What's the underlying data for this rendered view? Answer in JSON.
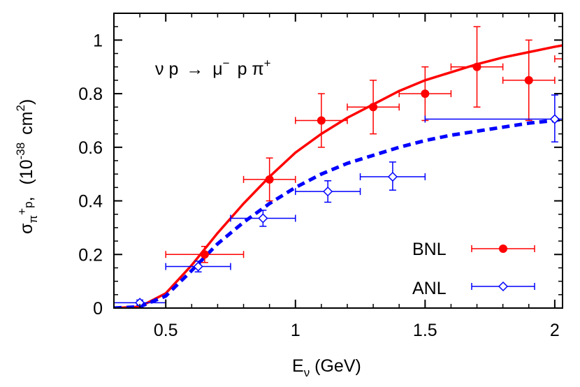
{
  "chart_data": {
    "type": "line",
    "title": "",
    "annotation": {
      "left": "ν p",
      "arrow": "→",
      "mu": "μ",
      "mu_sup": "−",
      "p": "p",
      "pi": "π",
      "pi_sup": "+"
    },
    "xlabel": {
      "main": "E",
      "sub": "ν",
      "unit": "(GeV)"
    },
    "ylabel": {
      "sigma": "σ",
      "sub": "π",
      "sub_sup": "+",
      "sub2": "p",
      "comma": ",",
      "unit_open": "(10",
      "exp": "-38",
      "unit_mid": "cm",
      "unit_exp": "2",
      "unit_close": ")"
    },
    "xlim": [
      0.3,
      2.03
    ],
    "ylim": [
      0,
      1.1
    ],
    "xticks": [
      0.5,
      1,
      1.5,
      2
    ],
    "xtick_labels": [
      "0.5",
      "1",
      "1.5",
      "2"
    ],
    "yticks": [
      0,
      0.2,
      0.4,
      0.6,
      0.8,
      1
    ],
    "ytick_labels": [
      "0",
      "0.2",
      "0.4",
      "0.6",
      "0.8",
      "1"
    ],
    "grid": false,
    "legend_position": "bottom-right",
    "series": [
      {
        "name": "BNL",
        "kind": "points",
        "color": "#ff0000",
        "marker": "filled-circle",
        "points": [
          {
            "x": 0.65,
            "y": 0.2,
            "xlo": 0.5,
            "xhi": 0.8,
            "ylo": 0.17,
            "yhi": 0.23
          },
          {
            "x": 0.9,
            "y": 0.48,
            "xlo": 0.8,
            "xhi": 1.0,
            "ylo": 0.4,
            "yhi": 0.56
          },
          {
            "x": 1.1,
            "y": 0.7,
            "xlo": 1.0,
            "xhi": 1.2,
            "ylo": 0.6,
            "yhi": 0.8
          },
          {
            "x": 1.3,
            "y": 0.75,
            "xlo": 1.2,
            "xhi": 1.4,
            "ylo": 0.65,
            "yhi": 0.85
          },
          {
            "x": 1.5,
            "y": 0.8,
            "xlo": 1.4,
            "xhi": 1.6,
            "ylo": 0.7,
            "yhi": 0.9
          },
          {
            "x": 1.7,
            "y": 0.9,
            "xlo": 1.6,
            "xhi": 1.8,
            "ylo": 0.75,
            "yhi": 1.05
          },
          {
            "x": 1.9,
            "y": 0.85,
            "xlo": 1.8,
            "xhi": 2.0,
            "ylo": 0.7,
            "yhi": 1.0
          },
          {
            "x": 2.1,
            "y": 0.93,
            "xlo": 2.0,
            "xhi": 2.2,
            "ylo": 0.8,
            "yhi": 1.06
          }
        ]
      },
      {
        "name": "ANL",
        "kind": "points",
        "color": "#0000ff",
        "marker": "open-diamond",
        "points": [
          {
            "x": 0.4,
            "y": 0.02,
            "xlo": 0.3,
            "xhi": 0.5,
            "ylo": 0.01,
            "yhi": 0.03
          },
          {
            "x": 0.625,
            "y": 0.155,
            "xlo": 0.5,
            "xhi": 0.75,
            "ylo": 0.135,
            "yhi": 0.175
          },
          {
            "x": 0.875,
            "y": 0.335,
            "xlo": 0.75,
            "xhi": 1.0,
            "ylo": 0.305,
            "yhi": 0.365
          },
          {
            "x": 1.125,
            "y": 0.435,
            "xlo": 1.0,
            "xhi": 1.25,
            "ylo": 0.395,
            "yhi": 0.475
          },
          {
            "x": 1.375,
            "y": 0.49,
            "xlo": 1.25,
            "xhi": 1.5,
            "ylo": 0.44,
            "yhi": 0.545
          },
          {
            "x": 2.0,
            "y": 0.705,
            "xlo": 1.5,
            "xhi": 2.5,
            "ylo": 0.62,
            "yhi": 0.795
          }
        ]
      },
      {
        "kind": "curve",
        "color": "#ff0000",
        "style": "solid",
        "x": [
          0.3,
          0.4,
          0.5,
          0.6,
          0.7,
          0.8,
          0.9,
          1.0,
          1.1,
          1.2,
          1.3,
          1.4,
          1.5,
          1.6,
          1.7,
          1.8,
          1.9,
          2.0,
          2.03
        ],
        "y": [
          0,
          0.005,
          0.055,
          0.16,
          0.28,
          0.39,
          0.49,
          0.58,
          0.65,
          0.71,
          0.76,
          0.81,
          0.85,
          0.88,
          0.91,
          0.935,
          0.955,
          0.975,
          0.98
        ]
      },
      {
        "kind": "curve",
        "color": "#0000ff",
        "style": "dashed",
        "x": [
          0.3,
          0.4,
          0.5,
          0.6,
          0.7,
          0.8,
          0.9,
          1.0,
          1.1,
          1.2,
          1.3,
          1.4,
          1.5,
          1.6,
          1.7,
          1.8,
          1.9,
          2.0,
          2.03
        ],
        "y": [
          0,
          0.005,
          0.045,
          0.14,
          0.24,
          0.32,
          0.39,
          0.45,
          0.5,
          0.54,
          0.57,
          0.6,
          0.625,
          0.645,
          0.66,
          0.675,
          0.69,
          0.7,
          0.705
        ]
      }
    ]
  }
}
